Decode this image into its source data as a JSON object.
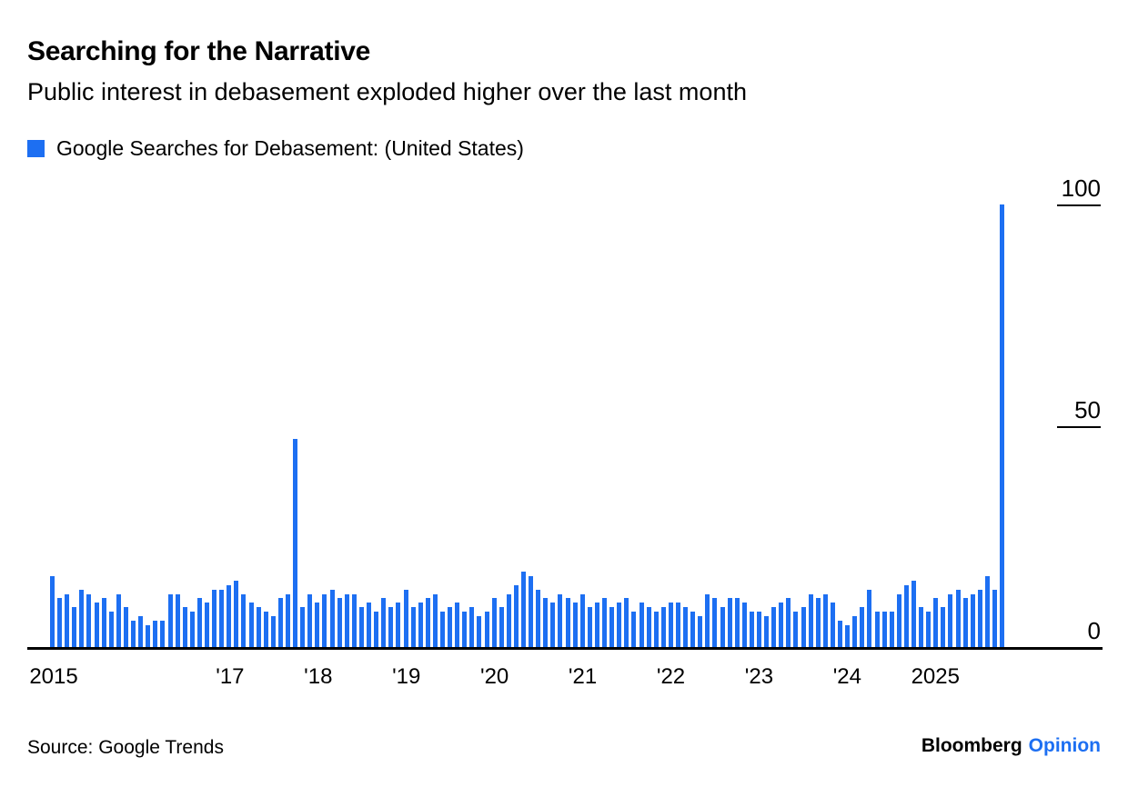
{
  "header": {
    "title": "Searching for the Narrative",
    "subtitle": "Public interest in debasement exploded higher over the last month"
  },
  "legend": {
    "label": "Google Searches for Debasement: (United States)"
  },
  "colors": {
    "accent": "#1d6ff2",
    "text": "#000000",
    "axis": "#000000"
  },
  "chart_data": {
    "type": "bar",
    "title": "Searching for the Narrative",
    "subtitle": "Public interest in debasement exploded higher over the last month",
    "x_unit": "month",
    "x_start": "2015-01",
    "x_end": "2025-10",
    "ylim": [
      0,
      100
    ],
    "grid": false,
    "legend_position": "top-left",
    "y_axis_side": "right",
    "series": [
      {
        "name": "Google Searches for Debasement: (United States)",
        "values": [
          16,
          11,
          12,
          9,
          13,
          12,
          10,
          11,
          8,
          12,
          9,
          6,
          7,
          5,
          6,
          6,
          12,
          12,
          9,
          8,
          11,
          10,
          13,
          13,
          14,
          15,
          12,
          10,
          9,
          8,
          7,
          11,
          12,
          47,
          9,
          12,
          10,
          12,
          13,
          11,
          12,
          12,
          9,
          10,
          8,
          11,
          9,
          10,
          13,
          9,
          10,
          11,
          12,
          8,
          9,
          10,
          8,
          9,
          7,
          8,
          11,
          9,
          12,
          14,
          17,
          16,
          13,
          11,
          10,
          12,
          11,
          10,
          12,
          9,
          10,
          11,
          9,
          10,
          11,
          8,
          10,
          9,
          8,
          9,
          10,
          10,
          9,
          8,
          7,
          12,
          11,
          9,
          11,
          11,
          10,
          8,
          8,
          7,
          9,
          10,
          11,
          8,
          9,
          12,
          11,
          12,
          10,
          6,
          5,
          7,
          9,
          13,
          8,
          8,
          8,
          12,
          14,
          15,
          9,
          8,
          11,
          9,
          12,
          13,
          11,
          12,
          13,
          16,
          13,
          100
        ]
      }
    ],
    "y_ticks": [
      {
        "value": 100,
        "tick_line": true
      },
      {
        "value": 50,
        "tick_line": true
      },
      {
        "value": 0,
        "tick_line": false
      }
    ],
    "x_ticks": [
      {
        "label": "2015",
        "month_index": 0
      },
      {
        "label": "'17",
        "month_index": 24
      },
      {
        "label": "'18",
        "month_index": 36
      },
      {
        "label": "'19",
        "month_index": 48
      },
      {
        "label": "'20",
        "month_index": 60
      },
      {
        "label": "'21",
        "month_index": 72
      },
      {
        "label": "'22",
        "month_index": 84
      },
      {
        "label": "'23",
        "month_index": 96
      },
      {
        "label": "'24",
        "month_index": 108
      },
      {
        "label": "2025",
        "month_index": 120
      }
    ]
  },
  "footer": {
    "source": "Source: Google Trends",
    "brand": "Bloomberg",
    "brand_suffix": "Opinion"
  }
}
